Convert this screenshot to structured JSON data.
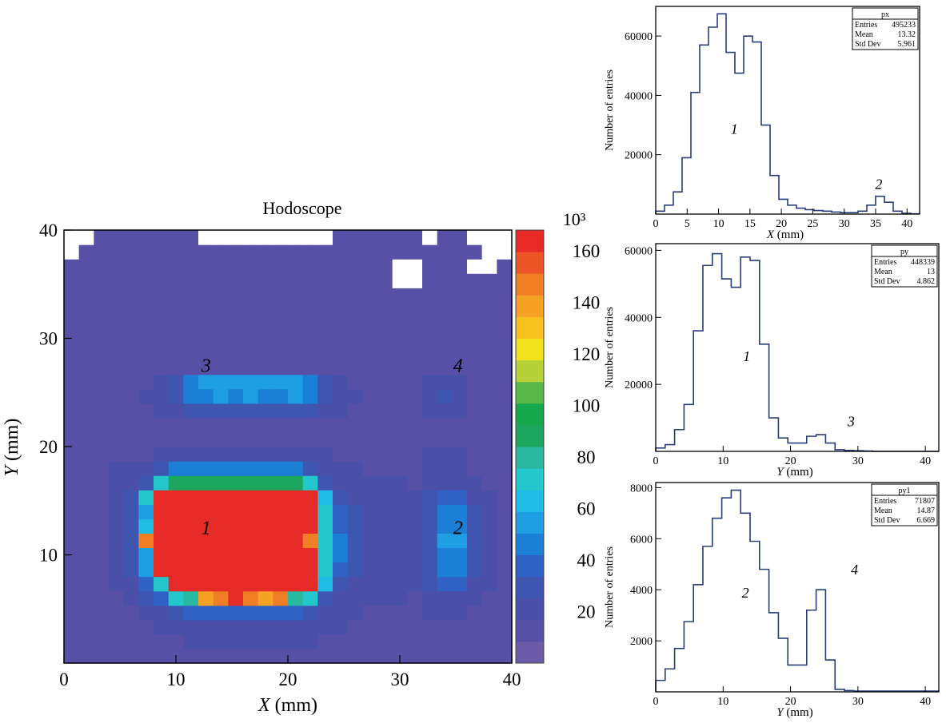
{
  "chart_data": [
    {
      "type": "heatmap",
      "title": "Hodoscope",
      "xlabel": "X (mm)",
      "ylabel": "Y (mm)",
      "xlim": [
        0,
        40
      ],
      "ylim": [
        0,
        40
      ],
      "x_ticks": [
        "0",
        "10",
        "20",
        "30",
        "40"
      ],
      "y_ticks": [
        "10",
        "20",
        "30",
        "40"
      ],
      "colorbar": {
        "exponent_label": "10³",
        "range": [
          0,
          168
        ],
        "ticks": [
          "20",
          "40",
          "60",
          "80",
          "100",
          "120",
          "140",
          "160"
        ],
        "colors": [
          "#6a5aa8",
          "#5850a6",
          "#4a50a8",
          "#3f56b0",
          "#2f62c4",
          "#1c7fd6",
          "#1e9fe3",
          "#1fbde6",
          "#24c8cc",
          "#29b8a0",
          "#1ca65e",
          "#16a84c",
          "#5ab848",
          "#b7d238",
          "#f0e21d",
          "#f8c11f",
          "#f4a124",
          "#f07e24",
          "#ec5627",
          "#e62a28"
        ]
      },
      "bins": {
        "nx": 30,
        "ny": 30
      },
      "cell_values": [
        [
          16,
          16,
          16,
          16,
          16,
          16,
          16,
          16,
          16,
          16,
          16,
          16,
          16,
          16,
          16,
          16,
          16,
          16,
          16,
          16,
          16,
          16,
          16,
          16,
          16,
          16,
          16,
          16,
          16,
          16
        ],
        [
          16,
          16,
          16,
          16,
          16,
          16,
          16,
          16,
          18,
          18,
          18,
          18,
          18,
          18,
          18,
          18,
          18,
          16,
          16,
          16,
          16,
          16,
          16,
          16,
          16,
          16,
          16,
          16,
          16,
          16
        ],
        [
          16,
          16,
          16,
          16,
          16,
          16,
          20,
          20,
          22,
          22,
          22,
          22,
          22,
          22,
          22,
          22,
          22,
          20,
          20,
          16,
          16,
          16,
          16,
          16,
          16,
          16,
          16,
          16,
          16,
          16
        ],
        [
          16,
          16,
          16,
          16,
          16,
          22,
          24,
          28,
          40,
          40,
          40,
          40,
          40,
          40,
          40,
          40,
          28,
          24,
          22,
          18,
          16,
          16,
          16,
          16,
          18,
          18,
          18,
          16,
          16,
          16
        ],
        [
          16,
          16,
          16,
          16,
          22,
          26,
          40,
          70,
          80,
          140,
          145,
          160,
          150,
          140,
          145,
          80,
          70,
          30,
          24,
          20,
          18,
          18,
          18,
          16,
          24,
          24,
          24,
          18,
          16,
          16
        ],
        [
          16,
          16,
          16,
          18,
          24,
          40,
          70,
          168,
          168,
          168,
          168,
          168,
          168,
          168,
          168,
          168,
          168,
          60,
          30,
          24,
          20,
          20,
          18,
          18,
          26,
          40,
          40,
          24,
          18,
          16
        ],
        [
          16,
          16,
          16,
          18,
          28,
          55,
          168,
          168,
          168,
          168,
          168,
          168,
          168,
          168,
          168,
          168,
          168,
          70,
          40,
          26,
          22,
          22,
          20,
          18,
          28,
          45,
          45,
          26,
          20,
          16
        ],
        [
          16,
          16,
          16,
          20,
          30,
          55,
          168,
          168,
          168,
          168,
          168,
          168,
          168,
          168,
          168,
          168,
          168,
          70,
          45,
          26,
          22,
          22,
          20,
          18,
          28,
          50,
          50,
          28,
          20,
          16
        ],
        [
          16,
          16,
          16,
          20,
          30,
          150,
          168,
          168,
          168,
          168,
          168,
          168,
          168,
          168,
          168,
          168,
          150,
          70,
          45,
          28,
          24,
          22,
          20,
          20,
          30,
          55,
          55,
          30,
          22,
          16
        ],
        [
          16,
          16,
          16,
          20,
          30,
          60,
          168,
          168,
          168,
          168,
          168,
          168,
          168,
          168,
          168,
          168,
          168,
          70,
          40,
          26,
          22,
          22,
          20,
          20,
          28,
          50,
          50,
          28,
          20,
          16
        ],
        [
          16,
          16,
          16,
          20,
          30,
          55,
          168,
          168,
          168,
          168,
          168,
          168,
          168,
          168,
          168,
          168,
          168,
          70,
          40,
          26,
          22,
          22,
          20,
          18,
          28,
          45,
          45,
          26,
          20,
          16
        ],
        [
          16,
          16,
          16,
          20,
          26,
          70,
          168,
          168,
          168,
          168,
          168,
          168,
          168,
          168,
          168,
          168,
          168,
          60,
          30,
          24,
          22,
          22,
          20,
          18,
          26,
          40,
          40,
          24,
          18,
          16
        ],
        [
          16,
          16,
          16,
          18,
          22,
          28,
          70,
          90,
          90,
          90,
          90,
          90,
          90,
          90,
          90,
          90,
          70,
          30,
          24,
          20,
          18,
          18,
          18,
          16,
          24,
          24,
          24,
          18,
          16,
          16
        ],
        [
          16,
          16,
          16,
          18,
          22,
          24,
          30,
          45,
          45,
          45,
          45,
          45,
          45,
          45,
          45,
          45,
          30,
          24,
          22,
          18,
          16,
          16,
          16,
          16,
          20,
          22,
          20,
          16,
          16,
          16
        ],
        [
          16,
          16,
          16,
          16,
          16,
          16,
          18,
          22,
          24,
          24,
          24,
          24,
          24,
          24,
          24,
          24,
          22,
          18,
          16,
          16,
          16,
          16,
          16,
          16,
          18,
          18,
          18,
          16,
          16,
          16
        ],
        [
          16,
          16,
          16,
          16,
          16,
          16,
          16,
          16,
          16,
          16,
          16,
          16,
          16,
          16,
          16,
          16,
          16,
          16,
          16,
          16,
          16,
          16,
          16,
          16,
          16,
          16,
          16,
          16,
          16,
          16
        ],
        [
          16,
          16,
          16,
          16,
          16,
          16,
          16,
          16,
          16,
          16,
          16,
          16,
          16,
          16,
          16,
          16,
          16,
          16,
          16,
          16,
          16,
          16,
          16,
          16,
          16,
          16,
          16,
          16,
          16,
          16
        ],
        [
          16,
          16,
          16,
          16,
          16,
          16,
          22,
          24,
          28,
          28,
          28,
          28,
          28,
          28,
          28,
          28,
          28,
          24,
          22,
          16,
          16,
          16,
          16,
          16,
          18,
          22,
          18,
          16,
          16,
          16
        ],
        [
          16,
          16,
          16,
          16,
          16,
          20,
          24,
          30,
          45,
          45,
          55,
          48,
          55,
          45,
          48,
          55,
          45,
          30,
          24,
          20,
          16,
          16,
          16,
          16,
          20,
          28,
          20,
          16,
          16,
          16
        ],
        [
          16,
          16,
          16,
          16,
          16,
          16,
          22,
          26,
          50,
          55,
          55,
          55,
          55,
          55,
          55,
          55,
          50,
          26,
          22,
          16,
          16,
          16,
          16,
          16,
          18,
          22,
          18,
          16,
          16,
          16
        ],
        [
          16,
          16,
          16,
          16,
          16,
          16,
          16,
          16,
          16,
          16,
          16,
          16,
          16,
          16,
          16,
          16,
          16,
          16,
          16,
          16,
          16,
          16,
          16,
          16,
          16,
          16,
          16,
          16,
          16,
          16
        ],
        [
          16,
          16,
          16,
          16,
          16,
          16,
          16,
          16,
          16,
          16,
          16,
          16,
          16,
          16,
          16,
          16,
          16,
          16,
          16,
          16,
          16,
          16,
          16,
          16,
          16,
          16,
          16,
          16,
          16,
          16
        ],
        [
          16,
          16,
          16,
          16,
          16,
          16,
          16,
          16,
          16,
          16,
          16,
          16,
          16,
          16,
          16,
          16,
          16,
          16,
          16,
          16,
          16,
          16,
          16,
          16,
          16,
          16,
          16,
          16,
          16,
          16
        ],
        [
          16,
          16,
          16,
          16,
          16,
          16,
          16,
          16,
          16,
          16,
          16,
          16,
          16,
          16,
          16,
          16,
          16,
          16,
          16,
          16,
          16,
          16,
          16,
          16,
          16,
          16,
          16,
          16,
          16,
          16
        ],
        [
          16,
          16,
          16,
          16,
          16,
          16,
          16,
          16,
          16,
          16,
          16,
          16,
          16,
          16,
          16,
          16,
          16,
          16,
          16,
          16,
          16,
          16,
          16,
          16,
          16,
          16,
          16,
          16,
          16,
          16
        ],
        [
          16,
          16,
          16,
          16,
          16,
          16,
          16,
          16,
          16,
          16,
          16,
          16,
          16,
          16,
          16,
          16,
          16,
          16,
          16,
          16,
          16,
          16,
          16,
          16,
          16,
          16,
          16,
          16,
          16,
          16
        ],
        [
          16,
          16,
          16,
          16,
          16,
          16,
          16,
          16,
          16,
          16,
          16,
          16,
          16,
          16,
          16,
          16,
          16,
          16,
          16,
          16,
          16,
          16,
          0,
          0,
          16,
          16,
          16,
          16,
          16,
          16
        ],
        [
          16,
          16,
          16,
          16,
          16,
          16,
          16,
          16,
          16,
          16,
          16,
          16,
          16,
          16,
          16,
          16,
          16,
          16,
          16,
          16,
          16,
          16,
          0,
          0,
          16,
          16,
          16,
          0,
          0,
          16
        ],
        [
          0,
          16,
          16,
          16,
          16,
          16,
          16,
          16,
          16,
          16,
          16,
          16,
          16,
          16,
          16,
          16,
          16,
          16,
          16,
          16,
          16,
          16,
          16,
          16,
          16,
          16,
          16,
          16,
          0,
          0
        ],
        [
          0,
          0,
          16,
          16,
          16,
          16,
          16,
          16,
          16,
          0,
          0,
          0,
          0,
          0,
          0,
          0,
          0,
          0,
          16,
          16,
          16,
          16,
          16,
          16,
          0,
          16,
          16,
          0,
          0,
          0
        ]
      ],
      "annotations": [
        {
          "text": "1",
          "x": 12.7,
          "y": 12.5
        },
        {
          "text": "2",
          "x": 35.2,
          "y": 12.5
        },
        {
          "text": "3",
          "x": 12.7,
          "y": 27.5
        },
        {
          "text": "4",
          "x": 35.2,
          "y": 27.5
        }
      ]
    },
    {
      "type": "histogram",
      "name": "px",
      "xlabel": "X (mm)",
      "ylabel": "Number of entries",
      "xlim": [
        0,
        42
      ],
      "ylim": [
        0,
        70000
      ],
      "x_ticks": [
        "0",
        "5",
        "10",
        "15",
        "20",
        "25",
        "30",
        "35",
        "40"
      ],
      "y_ticks": [
        "20000",
        "40000",
        "60000"
      ],
      "bin_width": 1.4,
      "values": [
        1000,
        3000,
        7500,
        19000,
        41000,
        57000,
        63000,
        67500,
        54500,
        47500,
        60000,
        58000,
        30000,
        13000,
        5000,
        3000,
        2000,
        1500,
        1200,
        1000,
        700,
        500,
        500,
        1000,
        3000,
        6000,
        4000,
        1000,
        300,
        100
      ],
      "stats": [
        {
          "label": "Entries",
          "value": "495233"
        },
        {
          "label": "Mean",
          "value": "13.32"
        },
        {
          "label": "Std Dev",
          "value": "5.961"
        }
      ],
      "annotations": [
        {
          "text": "1",
          "x": 12.5,
          "y": 27000
        },
        {
          "text": "2",
          "x": 35.5,
          "y": 8500
        }
      ]
    },
    {
      "type": "histogram",
      "name": "py",
      "xlabel": "Y (mm)",
      "ylabel": "Number of entries",
      "xlim": [
        0,
        42
      ],
      "ylim": [
        0,
        62000
      ],
      "x_ticks": [
        "0",
        "10",
        "20",
        "30",
        "40"
      ],
      "y_ticks": [
        "20000",
        "40000",
        "60000"
      ],
      "bin_width": 1.4,
      "values": [
        1000,
        2000,
        6500,
        14000,
        36000,
        55500,
        59000,
        51500,
        49000,
        58000,
        57000,
        32000,
        10000,
        4000,
        2500,
        2500,
        4500,
        5000,
        2500,
        500,
        300,
        200,
        100,
        0,
        0,
        0,
        0,
        0,
        0,
        0
      ],
      "stats": [
        {
          "label": "Entries",
          "value": "448339"
        },
        {
          "label": "Mean",
          "value": "13"
        },
        {
          "label": "Std Dev",
          "value": "4.862"
        }
      ],
      "annotations": [
        {
          "text": "1",
          "x": 13.5,
          "y": 27000
        },
        {
          "text": "3",
          "x": 29,
          "y": 7500
        }
      ]
    },
    {
      "type": "histogram",
      "name": "py1",
      "xlabel": "Y (mm)",
      "ylabel": "Number of entries",
      "xlim": [
        0,
        42
      ],
      "ylim": [
        0,
        8200
      ],
      "x_ticks": [
        "0",
        "10",
        "20",
        "30",
        "40"
      ],
      "y_ticks": [
        "2000",
        "4000",
        "6000",
        "8000"
      ],
      "bin_width": 1.4,
      "values": [
        450,
        900,
        1700,
        2750,
        4200,
        5700,
        6800,
        7600,
        7900,
        7000,
        5900,
        4800,
        3100,
        2100,
        1050,
        1050,
        3200,
        4000,
        1250,
        100,
        50,
        30,
        30,
        30,
        30,
        30,
        30,
        30,
        30,
        30
      ],
      "stats": [
        {
          "label": "Entries",
          "value": "71807"
        },
        {
          "label": "Mean",
          "value": "14.87"
        },
        {
          "label": "Std Dev",
          "value": "6.669"
        }
      ],
      "annotations": [
        {
          "text": "2",
          "x": 13.3,
          "y": 3700
        },
        {
          "text": "4",
          "x": 29.5,
          "y": 4600
        }
      ]
    }
  ]
}
